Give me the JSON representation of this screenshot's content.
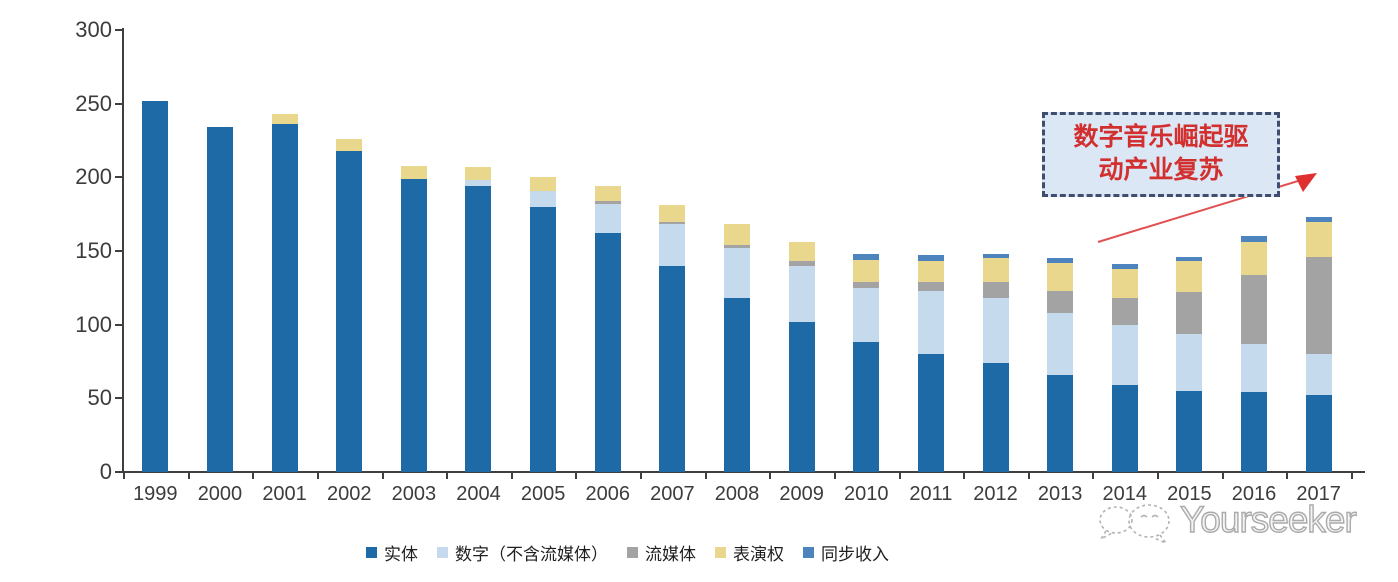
{
  "chart_data": {
    "type": "bar",
    "stacked": true,
    "title": "",
    "xlabel": "",
    "ylabel": "",
    "ylim": [
      0,
      300
    ],
    "yticks": [
      0,
      50,
      100,
      150,
      200,
      250,
      300
    ],
    "grid": false,
    "legend_position": "bottom",
    "categories": [
      "1999",
      "2000",
      "2001",
      "2002",
      "2003",
      "2004",
      "2005",
      "2006",
      "2007",
      "2008",
      "2009",
      "2010",
      "2011",
      "2012",
      "2013",
      "2014",
      "2015",
      "2016",
      "2017"
    ],
    "series": [
      {
        "name": "实体",
        "color": "#1d6aa6",
        "values": [
          252,
          234,
          236,
          218,
          199,
          194,
          180,
          162,
          140,
          118,
          102,
          88,
          80,
          74,
          66,
          59,
          55,
          54,
          52
        ]
      },
      {
        "name": "数字（不含流媒体）",
        "color": "#c6daee",
        "values": [
          0,
          0,
          0,
          0,
          0,
          4,
          11,
          20,
          28,
          34,
          38,
          37,
          43,
          44,
          42,
          41,
          39,
          33,
          28
        ]
      },
      {
        "name": "流媒体",
        "color": "#a3a3a3",
        "values": [
          0,
          0,
          0,
          0,
          0,
          0,
          0,
          2,
          2,
          2,
          3,
          4,
          6,
          11,
          15,
          18,
          28,
          47,
          66
        ]
      },
      {
        "name": "表演权",
        "color": "#e9d78e",
        "values": [
          0,
          0,
          7,
          8,
          9,
          9,
          9,
          10,
          11,
          14,
          13,
          15,
          14,
          16,
          19,
          20,
          21,
          22,
          24
        ]
      },
      {
        "name": "同步收入",
        "color": "#4d84bd",
        "values": [
          0,
          0,
          0,
          0,
          0,
          0,
          0,
          0,
          0,
          0,
          0,
          4,
          4,
          3,
          3,
          3,
          3,
          4,
          3
        ]
      }
    ]
  },
  "annotation": {
    "line1": "数字音乐崛起驱",
    "line2": "动产业复苏",
    "text_color": "#d22f2f",
    "box_fill": "#dce7f5",
    "border_color": "#3f4d6e",
    "arrow_color": "#e05252"
  },
  "watermark": {
    "text": "Yourseeker",
    "logo": "wechat-chat-bubbles-icon"
  }
}
